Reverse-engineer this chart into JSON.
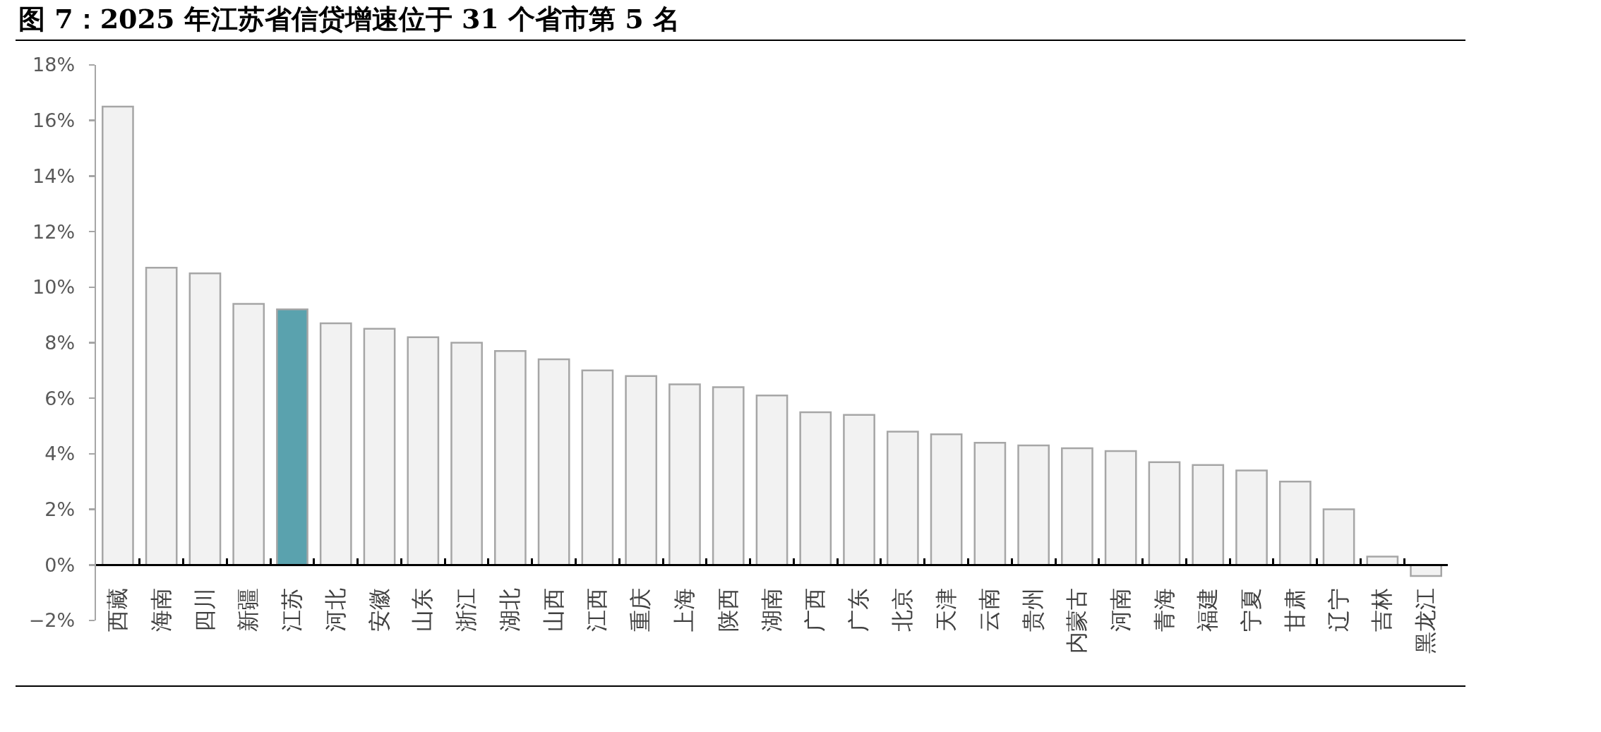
{
  "chart_data": {
    "type": "bar",
    "title": "图 7：2025 年江苏省信贷增速位于 31 个省市第 5 名",
    "categories": [
      "西藏",
      "海南",
      "四川",
      "新疆",
      "江苏",
      "河北",
      "安徽",
      "山东",
      "浙江",
      "湖北",
      "山西",
      "江西",
      "重庆",
      "上海",
      "陕西",
      "湖南",
      "广西",
      "广东",
      "北京",
      "天津",
      "云南",
      "贵州",
      "内蒙古",
      "河南",
      "青海",
      "福建",
      "宁夏",
      "甘肃",
      "辽宁",
      "吉林",
      "黑龙江"
    ],
    "values": [
      16.5,
      10.7,
      10.5,
      9.4,
      9.2,
      8.7,
      8.5,
      8.2,
      8.0,
      7.7,
      7.4,
      7.0,
      6.8,
      6.5,
      6.4,
      6.1,
      5.5,
      5.4,
      4.8,
      4.7,
      4.4,
      4.3,
      4.2,
      4.1,
      3.7,
      3.6,
      3.4,
      3.0,
      2.0,
      0.3,
      -0.4
    ],
    "colors": [
      "#f2f2f2",
      "#f2f2f2",
      "#f2f2f2",
      "#f2f2f2",
      "#5aa2ae",
      "#f2f2f2",
      "#f2f2f2",
      "#f2f2f2",
      "#f2f2f2",
      "#f2f2f2",
      "#f2f2f2",
      "#f2f2f2",
      "#f2f2f2",
      "#f2f2f2",
      "#f2f2f2",
      "#f2f2f2",
      "#f2f2f2",
      "#f2f2f2",
      "#f2f2f2",
      "#f2f2f2",
      "#f2f2f2",
      "#f2f2f2",
      "#f2f2f2",
      "#f2f2f2",
      "#f2f2f2",
      "#f2f2f2",
      "#f2f2f2",
      "#f2f2f2",
      "#f2f2f2",
      "#f2f2f2",
      "#f2f2f2"
    ],
    "ylim": [
      -2,
      18
    ],
    "yticks": [
      {
        "value": -2,
        "label": "−2%"
      },
      {
        "value": 0,
        "label": "0%"
      },
      {
        "value": 2,
        "label": "2%"
      },
      {
        "value": 4,
        "label": "4%"
      },
      {
        "value": 6,
        "label": "6%"
      },
      {
        "value": 8,
        "label": "8%"
      },
      {
        "value": 10,
        "label": "10%"
      },
      {
        "value": 12,
        "label": "12%"
      },
      {
        "value": 14,
        "label": "14%"
      },
      {
        "value": 16,
        "label": "16%"
      },
      {
        "value": 18,
        "label": "18%"
      }
    ]
  }
}
